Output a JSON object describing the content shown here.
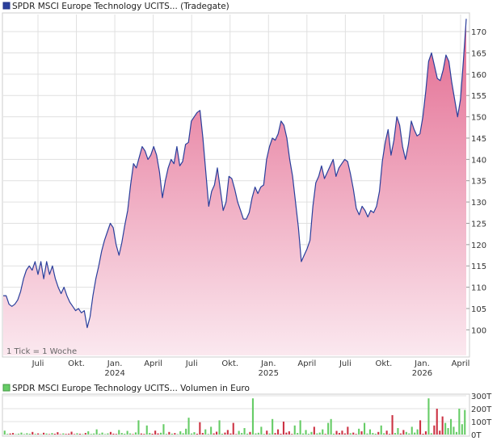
{
  "header": {
    "price_legend": "SPDR MSCI Europe Technology UCITS... (Tradegate)",
    "volume_legend": "SPDR MSCI Europe Technology UCITS... Volumen in Euro",
    "tick_note": "1 Tick = 1 Woche"
  },
  "colors": {
    "price_line": "#2a3f9c",
    "fill_top": "#e36a90",
    "fill_bottom": "#fbe8ef",
    "grid": "#e0e0e0",
    "vol_up": "#66cc66",
    "vol_down": "#cc3344"
  },
  "chart_data": [
    {
      "type": "area",
      "title": "SPDR MSCI Europe Technology UCITS... (Tradegate)",
      "x_tick_labels": [
        "Juli",
        "Okt.",
        "Jan.",
        "April",
        "Juli",
        "Okt.",
        "Jan.",
        "April",
        "Juli",
        "Okt.",
        "Jan.",
        "April"
      ],
      "x_tick_years": [
        "",
        "",
        "2024",
        "",
        "",
        "",
        "2025",
        "",
        "",
        "",
        "2026",
        ""
      ],
      "y_tick_labels": [
        "100",
        "105",
        "110",
        "115",
        "120",
        "125",
        "130",
        "135",
        "140",
        "145",
        "150",
        "155",
        "160",
        "165",
        "170"
      ],
      "ylim": [
        94,
        174
      ],
      "grid": true,
      "series": [
        {
          "values": [
            108,
            108,
            106,
            105.5,
            106,
            107,
            109,
            112,
            114,
            115,
            114,
            116,
            113,
            116,
            112,
            116,
            113,
            115,
            112,
            110,
            108.5,
            110,
            108,
            106.5,
            105.5,
            104.5,
            105,
            104,
            104.5,
            100.5,
            103,
            108,
            112,
            115,
            118.5,
            121,
            123,
            125,
            124,
            120,
            117.5,
            120.5,
            124.5,
            128,
            134,
            139,
            138,
            140.5,
            143,
            142,
            140,
            141,
            143,
            141,
            137,
            131,
            135,
            138,
            140,
            139,
            143,
            138.5,
            139.5,
            143.5,
            144,
            149,
            150,
            151,
            151.5,
            145,
            137,
            129,
            132.5,
            134,
            138,
            133,
            128,
            130,
            136,
            135.5,
            133,
            130,
            128,
            126,
            126,
            127.5,
            131,
            133.5,
            132,
            133.5,
            134,
            140,
            143,
            145,
            144.5,
            146,
            149,
            148,
            145,
            140,
            136,
            130,
            124,
            116,
            117.5,
            119,
            121,
            129,
            134.5,
            136,
            138.5,
            135.5,
            137,
            138.5,
            140,
            136,
            138,
            139,
            140,
            139.5,
            136.5,
            133,
            128.5,
            127,
            129,
            128,
            126.5,
            128,
            127.5,
            129,
            132.5,
            139.5,
            144,
            147,
            141,
            144.5,
            150,
            148,
            143,
            140,
            143.5,
            149,
            147,
            145.5,
            146,
            150,
            156,
            163,
            165,
            162,
            159,
            158.5,
            161,
            164.5,
            163,
            158,
            154,
            150,
            154,
            163,
            173
          ]
        }
      ]
    },
    {
      "type": "bar",
      "title": "SPDR MSCI Europe Technology UCITS... Volumen in Euro",
      "y_tick_labels": [
        "0T",
        "100T",
        "200T",
        "300T"
      ],
      "ylim": [
        0,
        300
      ],
      "series": [
        {
          "unit": "T",
          "values": [
            30,
            5,
            8,
            12,
            3,
            7,
            15,
            4,
            10,
            6,
            20,
            5,
            9,
            3,
            14,
            8,
            4,
            11,
            6,
            18,
            3,
            9,
            5,
            7,
            22,
            4,
            10,
            6,
            3,
            12,
            25,
            5,
            8,
            40,
            6,
            15,
            4,
            9,
            20,
            7,
            5,
            35,
            12,
            6,
            28,
            9,
            4,
            16,
            110,
            8,
            5,
            70,
            12,
            6,
            30,
            9,
            14,
            80,
            5,
            20,
            7,
            11,
            4,
            25,
            10,
            45,
            130,
            8,
            18,
            6,
            95,
            12,
            40,
            5,
            60,
            9,
            22,
            110,
            6,
            15,
            35,
            8,
            90,
            4,
            28,
            12,
            50,
            7,
            20,
            280,
            9,
            14,
            60,
            5,
            30,
            8,
            120,
            11,
            40,
            6,
            100,
            15,
            25,
            5,
            70,
            12,
            110,
            8,
            35,
            6,
            20,
            60,
            9,
            15,
            40,
            5,
            90,
            120,
            7,
            28,
            12,
            30,
            9,
            60,
            10,
            15,
            5,
            45,
            25,
            90,
            8,
            40,
            12,
            6,
            20,
            70,
            10,
            30,
            5,
            150,
            12,
            50,
            8,
            35,
            20,
            9,
            60,
            15,
            40,
            110,
            6,
            25,
            280,
            10,
            70,
            200,
            30,
            140,
            90,
            50,
            120,
            60,
            20,
            200,
            80,
            190
          ]
        }
      ]
    }
  ]
}
